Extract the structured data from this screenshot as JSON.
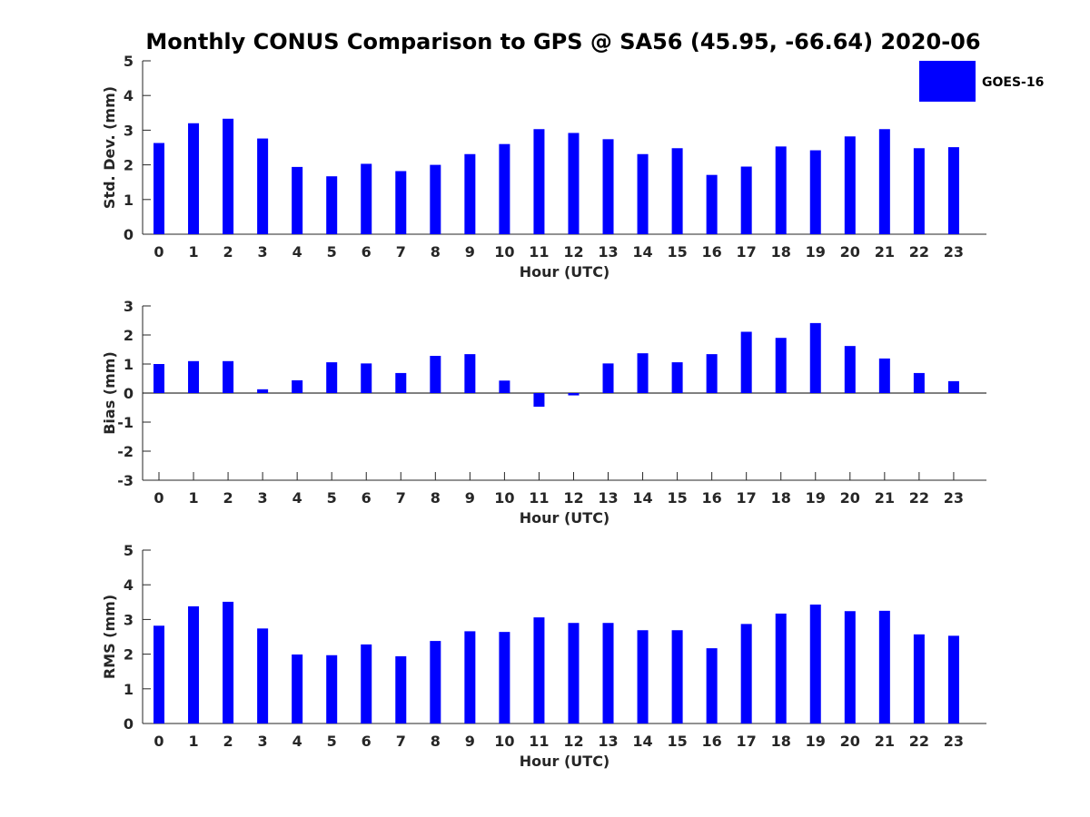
{
  "figure": {
    "title": "Monthly CONUS Comparison to GPS @ SA56 (45.95, -66.64) 2020-06",
    "legend": {
      "label": "GOES-16",
      "placement": "top-right"
    },
    "bar_color": "#0000ff"
  },
  "chart_data": [
    {
      "type": "bar",
      "categories": [
        "0",
        "1",
        "2",
        "3",
        "4",
        "5",
        "6",
        "7",
        "8",
        "9",
        "10",
        "11",
        "12",
        "13",
        "14",
        "15",
        "16",
        "17",
        "18",
        "19",
        "20",
        "21",
        "22",
        "23"
      ],
      "series": [
        {
          "name": "GOES-16",
          "values": [
            2.63,
            3.2,
            3.33,
            2.76,
            1.94,
            1.67,
            2.03,
            1.82,
            2.0,
            2.31,
            2.6,
            3.03,
            2.92,
            2.74,
            2.31,
            2.48,
            1.71,
            1.95,
            2.53,
            2.42,
            2.82,
            3.03,
            2.48,
            2.51
          ]
        }
      ],
      "xlabel": "Hour (UTC)",
      "ylabel": "Std. Dev. (mm)",
      "ylim": [
        0,
        5
      ],
      "yticks": [
        "0",
        "1",
        "2",
        "3",
        "4",
        "5"
      ],
      "grid": false
    },
    {
      "type": "bar",
      "categories": [
        "0",
        "1",
        "2",
        "3",
        "4",
        "5",
        "6",
        "7",
        "8",
        "9",
        "10",
        "11",
        "12",
        "13",
        "14",
        "15",
        "16",
        "17",
        "18",
        "19",
        "20",
        "21",
        "22",
        "23"
      ],
      "series": [
        {
          "name": "GOES-16",
          "values": [
            1.0,
            1.1,
            1.1,
            0.13,
            0.44,
            1.06,
            1.02,
            0.69,
            1.28,
            1.34,
            0.43,
            -0.47,
            -0.08,
            1.02,
            1.37,
            1.06,
            1.34,
            2.11,
            1.9,
            2.41,
            1.62,
            1.19,
            0.69,
            0.41
          ]
        }
      ],
      "xlabel": "Hour (UTC)",
      "ylabel": "Bias (mm)",
      "ylim": [
        -3,
        3
      ],
      "yticks": [
        "-3",
        "-2",
        "-1",
        "0",
        "1",
        "2",
        "3"
      ],
      "grid": false,
      "zero_line": true
    },
    {
      "type": "bar",
      "categories": [
        "0",
        "1",
        "2",
        "3",
        "4",
        "5",
        "6",
        "7",
        "8",
        "9",
        "10",
        "11",
        "12",
        "13",
        "14",
        "15",
        "16",
        "17",
        "18",
        "19",
        "20",
        "21",
        "22",
        "23"
      ],
      "series": [
        {
          "name": "GOES-16",
          "values": [
            2.82,
            3.38,
            3.51,
            2.74,
            1.99,
            1.97,
            2.28,
            1.94,
            2.38,
            2.66,
            2.64,
            3.06,
            2.9,
            2.9,
            2.69,
            2.69,
            2.17,
            2.87,
            3.17,
            3.43,
            3.24,
            3.25,
            2.57,
            2.53
          ]
        }
      ],
      "xlabel": "Hour (UTC)",
      "ylabel": "RMS (mm)",
      "ylim": [
        0,
        5
      ],
      "yticks": [
        "0",
        "1",
        "2",
        "3",
        "4",
        "5"
      ],
      "grid": false
    }
  ]
}
